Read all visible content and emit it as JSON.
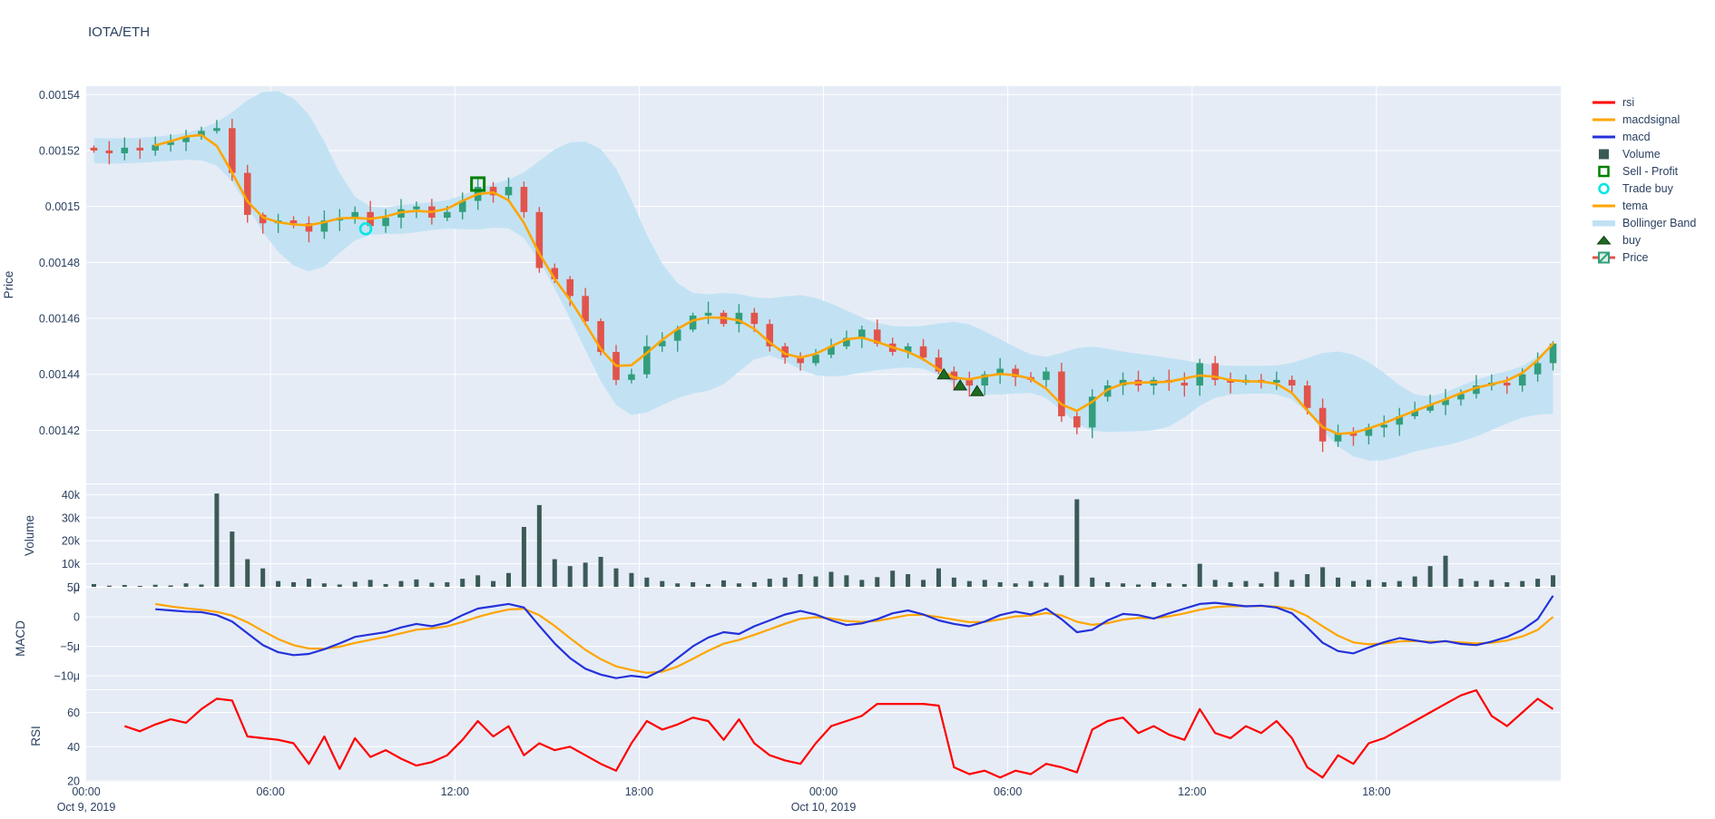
{
  "title": "IOTA/ETH",
  "colors": {
    "text": "#2a3f5f",
    "paper_bg": "#ffffff",
    "plot_bg": "#e5ecf6",
    "grid": "#ffffff",
    "rsi": "#ff0000",
    "macdsignal": "#ffa500",
    "macd": "#2432d9",
    "tema": "#ffa500",
    "volume": "#3b5a56",
    "sell_profit": "#008000",
    "trade_buy": "#00e5e5",
    "bollinger": "#c0e1f3",
    "buy": "#1e6b21",
    "candle_up": "#329e7c",
    "candle_down": "#e1544b"
  },
  "legend": {
    "items": [
      {
        "key": "rsi",
        "label": "rsi",
        "swatch": "line",
        "color": "#ff0000"
      },
      {
        "key": "macdsignal",
        "label": "macdsignal",
        "swatch": "line",
        "color": "#ffa500"
      },
      {
        "key": "macd",
        "label": "macd",
        "swatch": "line",
        "color": "#2432d9"
      },
      {
        "key": "volume",
        "label": "Volume",
        "swatch": "square",
        "color": "#3b5a56"
      },
      {
        "key": "sell-profit",
        "label": "Sell - Profit",
        "swatch": "square-open",
        "color": "#008000"
      },
      {
        "key": "trade-buy",
        "label": "Trade buy",
        "swatch": "circle-open",
        "color": "#00e5e5"
      },
      {
        "key": "tema",
        "label": "tema",
        "swatch": "line",
        "color": "#ffa500"
      },
      {
        "key": "bollinger-band",
        "label": "Bollinger Band",
        "swatch": "band",
        "color": "#c0e1f3"
      },
      {
        "key": "buy",
        "label": "buy",
        "swatch": "triangle",
        "color": "#1e6b21"
      },
      {
        "key": "price",
        "label": "Price",
        "swatch": "candle",
        "color": "#329e7c"
      }
    ]
  },
  "chart_data": {
    "type": "candlestick",
    "title": "IOTA/ETH",
    "x_start": "Oct 9, 2019 00:00",
    "hours_span": 48,
    "first_candle_hour": 0.25,
    "time_step_hours": 0.5,
    "price_unit_scale": 1e-06,
    "axes": {
      "x_ticks": [
        {
          "hour": 0,
          "label": "00:00"
        },
        {
          "hour": 6,
          "label": "06:00"
        },
        {
          "hour": 12,
          "label": "12:00"
        },
        {
          "hour": 18,
          "label": "18:00"
        },
        {
          "hour": 24,
          "label": "00:00"
        },
        {
          "hour": 30,
          "label": "06:00"
        },
        {
          "hour": 36,
          "label": "12:00"
        },
        {
          "hour": 42,
          "label": "18:00"
        }
      ],
      "x_date_ticks": [
        {
          "hour": 0,
          "label": "Oct 9, 2019"
        },
        {
          "hour": 24,
          "label": "Oct 10, 2019"
        }
      ],
      "price": {
        "title": "Price",
        "range_micro": [
          1401,
          1543
        ],
        "ticks": [
          {
            "micro": 1540,
            "label": "0.00154"
          },
          {
            "micro": 1520,
            "label": "0.00152"
          },
          {
            "micro": 1500,
            "label": "0.0015"
          },
          {
            "micro": 1480,
            "label": "0.00148"
          },
          {
            "micro": 1460,
            "label": "0.00146"
          },
          {
            "micro": 1440,
            "label": "0.00144"
          },
          {
            "micro": 1420,
            "label": "0.00142"
          }
        ]
      },
      "volume": {
        "title": "Volume",
        "range_k": [
          0,
          44.5
        ],
        "ticks": [
          {
            "k": 40,
            "label": "40k"
          },
          {
            "k": 30,
            "label": "30k"
          },
          {
            "k": 20,
            "label": "20k"
          },
          {
            "k": 10,
            "label": "10k"
          },
          {
            "k": 0,
            "label": "0"
          }
        ]
      },
      "macd": {
        "title": "MACD",
        "range_micro": [
          -12.3,
          4.95
        ],
        "ticks": [
          {
            "micro": 5,
            "label": "5μ"
          },
          {
            "micro": 0,
            "label": "0"
          },
          {
            "micro": -5,
            "label": "−5μ"
          },
          {
            "micro": -10,
            "label": "−10μ"
          }
        ]
      },
      "rsi": {
        "title": "RSI",
        "range": [
          19.5,
          73
        ],
        "ticks": [
          {
            "v": 60,
            "label": "60"
          },
          {
            "v": 40,
            "label": "40"
          },
          {
            "v": 20,
            "label": "20"
          }
        ]
      }
    },
    "close_micro": [
      1520,
      1519,
      1521,
      1520,
      1522,
      1523,
      1525,
      1527,
      1528,
      1512,
      1497,
      1494,
      1495,
      1494,
      1491,
      1495,
      1496,
      1498,
      1493,
      1496,
      1499,
      1500,
      1496,
      1498,
      1502,
      1507,
      1504,
      1507,
      1498,
      1478,
      1474,
      1468,
      1459,
      1448,
      1438,
      1440,
      1450,
      1452,
      1456,
      1461,
      1462,
      1458,
      1462,
      1458,
      1450,
      1446,
      1444,
      1447,
      1450,
      1453,
      1456,
      1451,
      1448,
      1450,
      1446,
      1441,
      1438,
      1436,
      1440,
      1442,
      1439,
      1438,
      1441,
      1425,
      1421,
      1432,
      1436,
      1438,
      1436,
      1438,
      1437,
      1436,
      1444,
      1438,
      1437,
      1438,
      1437,
      1438,
      1436,
      1428,
      1416,
      1419,
      1418,
      1421,
      1422,
      1425,
      1427,
      1429,
      1431,
      1433,
      1436,
      1437,
      1436,
      1440,
      1444,
      1451
    ],
    "volume_k": [
      1.2,
      0.5,
      0.8,
      0.4,
      0.9,
      0.6,
      1.5,
      1.0,
      40.5,
      24,
      12,
      8,
      2.5,
      2,
      3.5,
      1.5,
      1.0,
      2.2,
      3.0,
      1.2,
      2.5,
      3.2,
      1.8,
      2.0,
      3.5,
      5.0,
      2.5,
      6.0,
      26,
      35.5,
      12,
      9,
      10.5,
      13,
      8,
      6,
      4,
      2.5,
      1.5,
      2.0,
      1.2,
      2.8,
      1.5,
      2.0,
      3.5,
      4.0,
      5.5,
      4.5,
      6.5,
      5.0,
      3.0,
      4.2,
      7.0,
      5.5,
      3.0,
      8.0,
      4.0,
      2.5,
      3.0,
      2.0,
      1.5,
      2.5,
      1.8,
      5.0,
      38,
      4.0,
      2.0,
      1.5,
      1.0,
      2.0,
      1.5,
      1.2,
      10,
      3.0,
      2.0,
      2.5,
      1.5,
      6.5,
      3.0,
      5.5,
      8.5,
      4.0,
      2.5,
      3.0,
      2.0,
      2.5,
      4.5,
      9.0,
      13.5,
      3.5,
      2.5,
      3.0,
      2.0,
      2.5,
      3.5,
      5.0
    ],
    "macd_micro": [
      null,
      null,
      null,
      null,
      1.3,
      1.1,
      0.9,
      0.8,
      0.3,
      -0.8,
      -2.8,
      -4.8,
      -6.0,
      -6.5,
      -6.3,
      -5.5,
      -4.5,
      -3.4,
      -3.0,
      -2.6,
      -1.8,
      -1.2,
      -1.6,
      -1.0,
      0.3,
      1.4,
      1.8,
      2.2,
      1.6,
      -1.5,
      -4.5,
      -7.0,
      -8.8,
      -9.8,
      -10.4,
      -10.0,
      -10.3,
      -9.0,
      -7.0,
      -5.0,
      -3.5,
      -2.6,
      -2.9,
      -1.6,
      -0.6,
      0.4,
      1.0,
      0.4,
      -0.6,
      -1.4,
      -1.1,
      -0.4,
      0.6,
      1.1,
      0.4,
      -0.6,
      -1.2,
      -1.6,
      -0.8,
      0.3,
      0.9,
      0.4,
      1.4,
      -0.4,
      -2.6,
      -2.2,
      -0.6,
      0.5,
      0.3,
      -0.3,
      0.6,
      1.4,
      2.2,
      2.4,
      2.1,
      1.8,
      1.9,
      1.6,
      0.6,
      -1.8,
      -4.4,
      -5.8,
      -6.2,
      -5.2,
      -4.3,
      -3.6,
      -4.0,
      -4.4,
      -4.1,
      -4.6,
      -4.8,
      -4.2,
      -3.4,
      -2.2,
      -0.4,
      3.6
    ],
    "rsi": [
      null,
      null,
      52,
      49,
      53,
      56,
      54,
      62,
      68,
      67,
      46,
      45,
      44,
      42,
      30,
      46,
      27,
      45,
      34,
      38,
      33,
      29,
      31,
      35,
      44,
      55,
      46,
      52,
      35,
      42,
      38,
      40,
      35,
      30,
      26,
      42,
      55,
      50,
      53,
      57,
      55,
      44,
      56,
      42,
      35,
      32,
      30,
      42,
      52,
      55,
      58,
      65,
      65,
      65,
      65,
      64,
      28,
      24,
      26,
      22,
      26,
      24,
      30,
      28,
      25,
      50,
      55,
      57,
      48,
      52,
      47,
      44,
      62,
      48,
      45,
      52,
      48,
      55,
      45,
      28,
      22,
      35,
      30,
      42,
      45,
      50,
      55,
      60,
      65,
      70,
      73,
      58,
      52,
      60,
      68,
      62
    ],
    "markers": {
      "trade_buy": [
        {
          "hour": 9.1,
          "price_micro": 1492
        }
      ],
      "sell_profit": [
        {
          "hour": 12.75,
          "price_micro": 1508
        }
      ],
      "buy": [
        {
          "hour": 27.92,
          "price_micro": 1440
        },
        {
          "hour": 28.45,
          "price_micro": 1436
        },
        {
          "hour": 29.0,
          "price_micro": 1434
        }
      ]
    },
    "legend_position": "right",
    "grid": true
  }
}
